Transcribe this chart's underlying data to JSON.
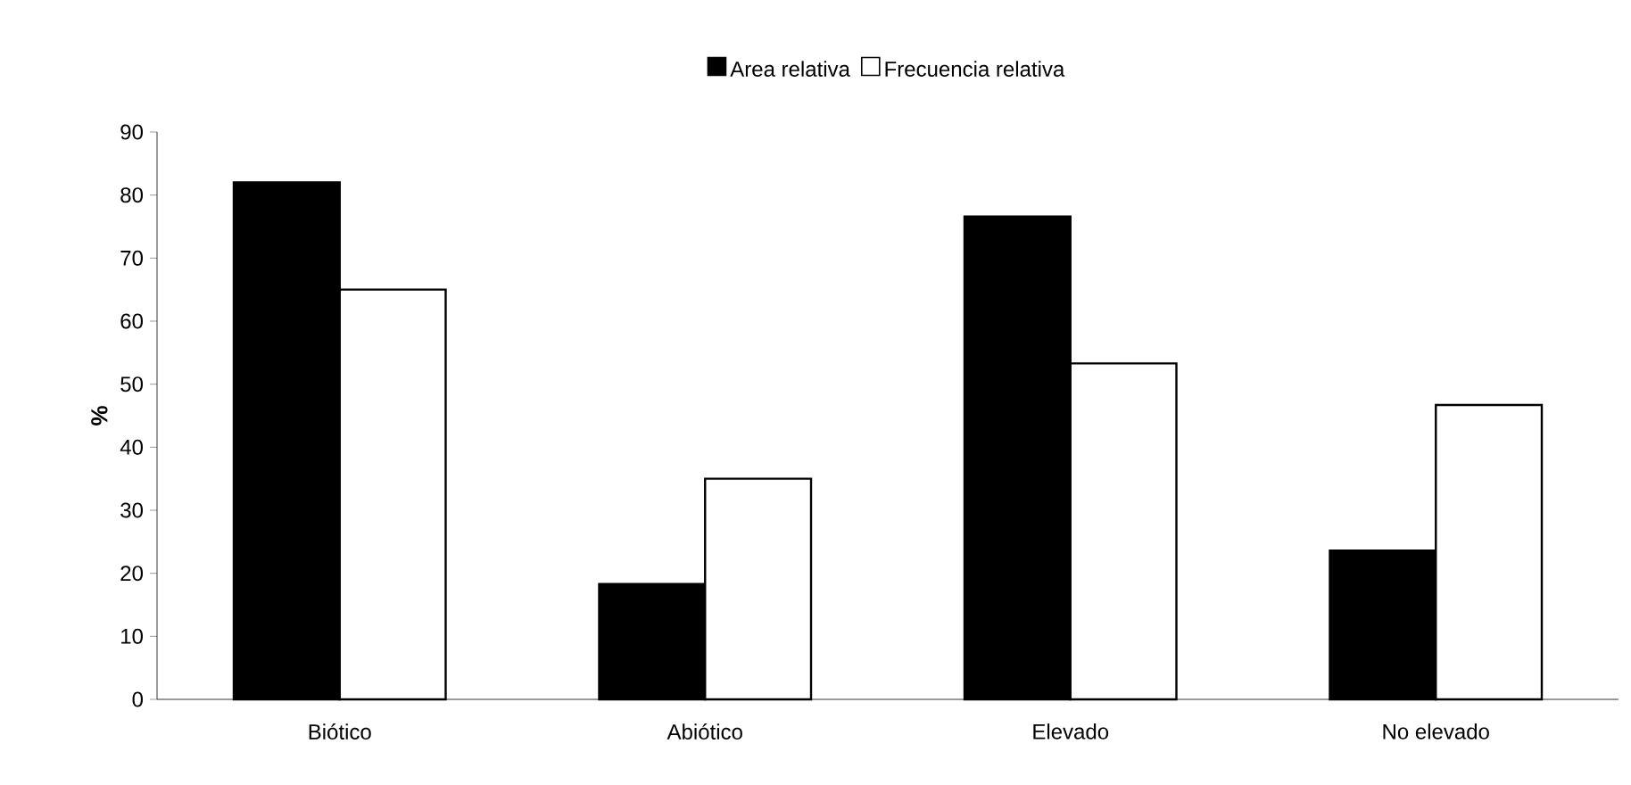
{
  "chart_data": {
    "type": "bar",
    "ylabel": "%",
    "categories": [
      "Biótico",
      "Abiótico",
      "Elevado",
      "No elevado"
    ],
    "series": [
      {
        "name": "Area relativa",
        "color": "#000000",
        "values": [
          82,
          18.3,
          76.6,
          23.6
        ]
      },
      {
        "name": "Frecuencia relativa",
        "color": "#ffffff",
        "values": [
          65,
          35,
          53.3,
          46.7
        ]
      }
    ],
    "ylim": [
      0,
      90
    ],
    "yticks": [
      0,
      10,
      20,
      30,
      40,
      50,
      60,
      70,
      80,
      90
    ],
    "grid": false,
    "legend": "top"
  }
}
